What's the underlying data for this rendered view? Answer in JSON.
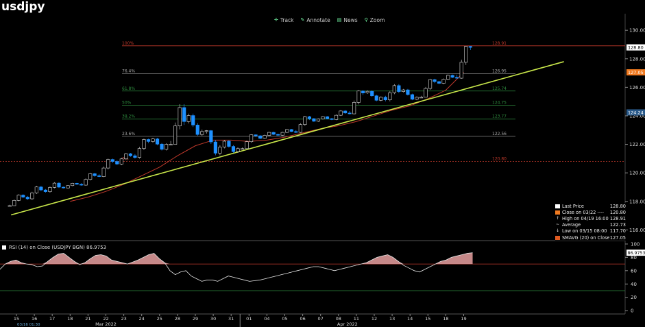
{
  "title": "usdjpy",
  "toolbar": {
    "items": [
      {
        "label": "Track",
        "icon": "crosshair-icon"
      },
      {
        "label": "Annotate",
        "icon": "pencil-icon"
      },
      {
        "label": "News",
        "icon": "news-icon"
      },
      {
        "label": "Zoom",
        "icon": "magnifier-icon"
      }
    ]
  },
  "colors": {
    "up_candle": "#ffffff",
    "down_candle": "#1e90ff",
    "trendline": "#c8e64a",
    "smavg": "#c0392b",
    "fib_high": "#c0392b",
    "fib_mid": "#2e8b3e",
    "rsi_fill": "#e8a0a0",
    "last_price_badge": "#ffffff",
    "smavg_badge": "#f07a20"
  },
  "chart_data": [
    {
      "type": "candlestick",
      "title": "usdjpy",
      "y_axis": {
        "min": 115.2,
        "max": 130.2,
        "ticks": [
          116.0,
          118.0,
          120.0,
          122.0,
          124.0,
          126.0,
          128.0,
          130.0
        ]
      },
      "price_badges": [
        {
          "value": 128.8,
          "label": "128.80",
          "color": "#ffffff"
        },
        {
          "value": 127.05,
          "label": "127.05",
          "color": "#f07a20"
        },
        {
          "value": 124.24,
          "label": "124.24",
          "color": "#2a5a8a"
        }
      ],
      "x_axis": {
        "day_labels": [
          "15",
          "16",
          "17",
          "18",
          "21",
          "22",
          "23",
          "24",
          "25",
          "28",
          "29",
          "30",
          "31",
          "01",
          "04",
          "05",
          "06",
          "07",
          "08",
          "11",
          "12",
          "13",
          "14",
          "15",
          "18",
          "19"
        ],
        "month_labels": [
          {
            "label": "Mar 2022",
            "at_index": 5
          },
          {
            "label": "Apr 2022",
            "at_index": 18.5
          }
        ],
        "start_stamp": "03/16 01:30"
      },
      "ohlc_daily": [
        {
          "o": 117.7,
          "h": 118.5,
          "l": 117.7,
          "c": 118.3
        },
        {
          "o": 118.3,
          "h": 119.1,
          "l": 118.1,
          "c": 118.8
        },
        {
          "o": 118.8,
          "h": 119.4,
          "l": 118.6,
          "c": 119.0
        },
        {
          "o": 119.0,
          "h": 119.3,
          "l": 118.9,
          "c": 119.2
        },
        {
          "o": 119.2,
          "h": 120.0,
          "l": 119.1,
          "c": 119.8
        },
        {
          "o": 119.8,
          "h": 121.0,
          "l": 119.7,
          "c": 120.8
        },
        {
          "o": 120.8,
          "h": 121.4,
          "l": 120.5,
          "c": 121.2
        },
        {
          "o": 121.2,
          "h": 122.4,
          "l": 121.0,
          "c": 122.2
        },
        {
          "o": 122.2,
          "h": 122.5,
          "l": 121.5,
          "c": 122.0
        },
        {
          "o": 122.0,
          "h": 125.0,
          "l": 122.0,
          "c": 123.6
        },
        {
          "o": 123.6,
          "h": 124.3,
          "l": 122.6,
          "c": 122.9
        },
        {
          "o": 122.9,
          "h": 123.0,
          "l": 121.2,
          "c": 121.8
        },
        {
          "o": 121.8,
          "h": 122.5,
          "l": 121.4,
          "c": 121.7
        },
        {
          "o": 121.7,
          "h": 122.7,
          "l": 121.7,
          "c": 122.6
        },
        {
          "o": 122.6,
          "h": 122.9,
          "l": 122.3,
          "c": 122.7
        },
        {
          "o": 122.7,
          "h": 123.1,
          "l": 122.6,
          "c": 122.9
        },
        {
          "o": 122.9,
          "h": 124.0,
          "l": 122.8,
          "c": 123.8
        },
        {
          "o": 123.8,
          "h": 124.0,
          "l": 123.5,
          "c": 123.8
        },
        {
          "o": 123.8,
          "h": 124.4,
          "l": 123.7,
          "c": 124.2
        },
        {
          "o": 124.2,
          "h": 125.8,
          "l": 124.1,
          "c": 125.6
        },
        {
          "o": 125.6,
          "h": 125.8,
          "l": 125.0,
          "c": 125.3
        },
        {
          "o": 125.3,
          "h": 126.3,
          "l": 125.0,
          "c": 125.7
        },
        {
          "o": 125.7,
          "h": 125.9,
          "l": 125.1,
          "c": 125.3
        },
        {
          "o": 125.3,
          "h": 126.6,
          "l": 125.3,
          "c": 126.4
        },
        {
          "o": 126.4,
          "h": 126.9,
          "l": 126.2,
          "c": 126.7
        },
        {
          "o": 126.7,
          "h": 128.9,
          "l": 126.6,
          "c": 128.8
        }
      ],
      "fib_levels": [
        {
          "name": "100%",
          "price": 128.91,
          "color": "#c0392b"
        },
        {
          "name": "76.4%",
          "price": 126.95,
          "color": "#888888"
        },
        {
          "name": "61.8%",
          "price": 125.74,
          "color": "#2e8b3e"
        },
        {
          "name": "50%",
          "price": 124.75,
          "color": "#2e8b3e"
        },
        {
          "name": "38.2%",
          "price": 123.77,
          "color": "#2e8b3e"
        },
        {
          "name": "23.6%",
          "price": 122.56,
          "color": "#888888"
        },
        {
          "name": "0%",
          "price": 120.8,
          "color": "#c0392b"
        }
      ],
      "fib_value_labels": [
        "128.91",
        "126.95",
        "125.74",
        "124.75",
        "123.77",
        "122.56",
        "120.80"
      ],
      "trendline": {
        "from": {
          "index": -0.3,
          "price": 117.05
        },
        "to": {
          "index": 30.6,
          "price": 127.8
        }
      },
      "smavg_20": [
        null,
        null,
        null,
        118.0,
        118.3,
        118.7,
        119.2,
        119.8,
        120.4,
        121.2,
        121.9,
        122.3,
        122.3,
        122.2,
        122.3,
        122.5,
        122.8,
        123.1,
        123.3,
        123.6,
        124.0,
        124.4,
        124.7,
        125.2,
        125.8,
        127.05
      ],
      "legend": [
        {
          "marker": "square-white",
          "label": "Last Price",
          "value": "128.80"
        },
        {
          "marker": "square-orange",
          "label": "Close on 03/22 ----",
          "value": "120.80"
        },
        {
          "marker": "up-arrow",
          "label": "High on 04/19 16:00",
          "value": "128.91"
        },
        {
          "marker": "tilde",
          "label": "Average",
          "value": "122.73"
        },
        {
          "marker": "down-arrow",
          "label": "Low on 03/15 08:00",
          "value": "117.70"
        },
        {
          "marker": "square-red",
          "label": "SMAVG (20)  on Close",
          "value": "127.05"
        }
      ]
    },
    {
      "type": "line",
      "title": "RSI (14)  on Close (USDJPY BGN) 86.9753",
      "y_axis": {
        "min": -5,
        "max": 102,
        "ticks": [
          0,
          20,
          40,
          60,
          80,
          100
        ]
      },
      "overbought": 70,
      "oversold": 30,
      "last_value_label": "86.9753",
      "values": [
        62,
        70,
        74,
        76,
        72,
        70,
        69,
        66,
        67,
        74,
        80,
        85,
        86,
        80,
        74,
        69,
        72,
        78,
        83,
        84,
        82,
        76,
        74,
        72,
        70,
        73,
        76,
        80,
        84,
        86,
        78,
        72,
        60,
        54,
        58,
        60,
        52,
        48,
        44,
        46,
        46,
        44,
        48,
        52,
        50,
        48,
        46,
        44,
        45,
        46,
        48,
        50,
        52,
        54,
        56,
        58,
        60,
        62,
        64,
        66,
        66,
        64,
        62,
        60,
        62,
        64,
        66,
        68,
        70,
        72,
        76,
        80,
        82,
        84,
        80,
        74,
        68,
        64,
        60,
        58,
        62,
        66,
        70,
        74,
        76,
        80,
        82,
        84,
        86,
        86.9753
      ]
    }
  ]
}
